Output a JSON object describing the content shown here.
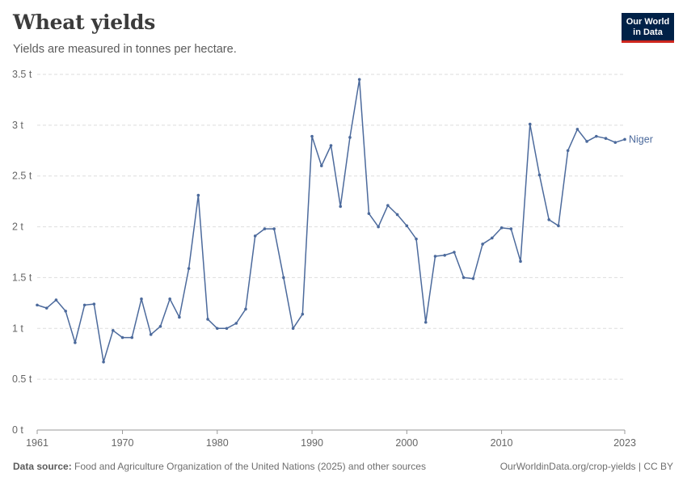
{
  "header": {
    "title": "Wheat yields",
    "subtitle": "Yields are measured in tonnes per hectare."
  },
  "logo": {
    "line1": "Our World",
    "line2": "in Data"
  },
  "footer": {
    "source_label": "Data source:",
    "source_text": "Food and Agriculture Organization of the United Nations (2025) and other sources",
    "link_text": "OurWorldinData.org/crop-yields | CC BY"
  },
  "colors": {
    "series": "#4c6a9c",
    "grid": "#dddddd",
    "axis": "#666666"
  },
  "chart_data": {
    "type": "line",
    "title": "Wheat yields",
    "subtitle": "Yields are measured in tonnes per hectare.",
    "xlabel": "",
    "ylabel": "",
    "xlim": [
      1961,
      2023
    ],
    "ylim": [
      0,
      3.5
    ],
    "x_ticks": [
      1961,
      1970,
      1980,
      1990,
      2000,
      2010,
      2023
    ],
    "y_ticks": [
      0,
      0.5,
      1,
      1.5,
      2,
      2.5,
      3,
      3.5
    ],
    "y_tick_labels": [
      "0 t",
      "0.5 t",
      "1 t",
      "1.5 t",
      "2 t",
      "2.5 t",
      "3 t",
      "3.5 t"
    ],
    "grid": true,
    "legend": "end-of-line label",
    "series": [
      {
        "name": "Niger",
        "x": [
          1961,
          1962,
          1963,
          1964,
          1965,
          1966,
          1967,
          1968,
          1969,
          1970,
          1971,
          1972,
          1973,
          1974,
          1975,
          1976,
          1977,
          1978,
          1979,
          1980,
          1981,
          1982,
          1983,
          1984,
          1985,
          1986,
          1987,
          1988,
          1989,
          1990,
          1991,
          1992,
          1993,
          1994,
          1995,
          1996,
          1997,
          1998,
          1999,
          2000,
          2001,
          2002,
          2003,
          2004,
          2005,
          2006,
          2007,
          2008,
          2009,
          2010,
          2011,
          2012,
          2013,
          2014,
          2015,
          2016,
          2017,
          2018,
          2019,
          2020,
          2021,
          2022,
          2023
        ],
        "values": [
          1.23,
          1.2,
          1.28,
          1.17,
          0.86,
          1.23,
          1.24,
          0.67,
          0.98,
          0.91,
          0.91,
          1.29,
          0.94,
          1.02,
          1.29,
          1.11,
          1.59,
          2.31,
          1.09,
          1.0,
          1.0,
          1.05,
          1.19,
          1.91,
          1.98,
          1.98,
          1.5,
          1.0,
          1.14,
          2.89,
          2.6,
          2.8,
          2.2,
          2.88,
          3.45,
          2.13,
          2.0,
          2.21,
          2.12,
          2.01,
          1.88,
          1.06,
          1.71,
          1.72,
          1.75,
          1.5,
          1.49,
          1.83,
          1.89,
          1.99,
          1.98,
          1.66,
          3.01,
          2.51,
          2.07,
          2.01,
          2.75,
          2.96,
          2.84,
          2.89,
          2.87,
          2.83,
          2.86
        ]
      }
    ]
  }
}
